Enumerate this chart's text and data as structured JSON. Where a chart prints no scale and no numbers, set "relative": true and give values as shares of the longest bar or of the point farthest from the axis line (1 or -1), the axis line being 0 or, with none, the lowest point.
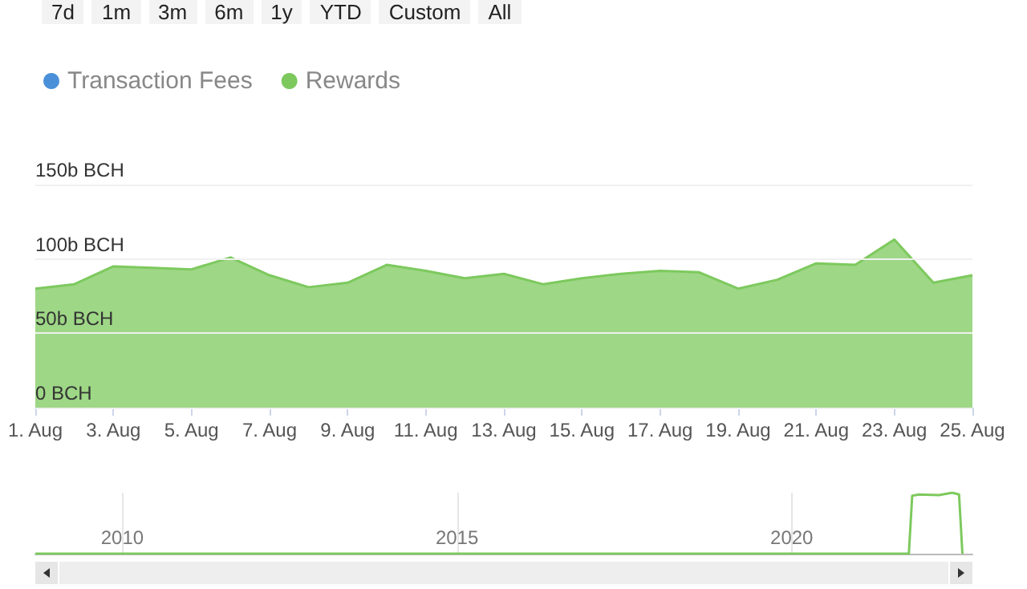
{
  "chart_data": [
    {
      "type": "area",
      "annotations": [
        "7d",
        "1m",
        "3m",
        "6m",
        "1y",
        "YTD",
        "Custom",
        "All"
      ],
      "categories": [
        "1. Aug",
        null,
        "3. Aug",
        null,
        "5. Aug",
        null,
        "7. Aug",
        null,
        "9. Aug",
        null,
        "11. Aug",
        null,
        "13. Aug",
        null,
        "15. Aug",
        null,
        "17. Aug",
        null,
        "19. Aug",
        null,
        "21. Aug",
        null,
        "23. Aug",
        null,
        "25. Aug"
      ],
      "series": [
        {
          "name": "Transaction Fees",
          "color": "#4a90d9",
          "values": [
            null,
            null,
            null,
            null,
            null,
            null,
            null,
            null,
            null,
            null,
            null,
            null,
            null,
            null,
            null,
            null,
            null,
            null,
            null,
            null,
            null,
            null,
            null,
            null,
            null
          ]
        },
        {
          "name": "Rewards",
          "color": "#7dc95e",
          "values": [
            80,
            83,
            95,
            94,
            93,
            101,
            89,
            81,
            84,
            96,
            92,
            87,
            90,
            83,
            87,
            90,
            92,
            91,
            80,
            86,
            97,
            96,
            113,
            84,
            89
          ]
        }
      ],
      "ylim": [
        0,
        150
      ],
      "yticks": [
        {
          "value": 0,
          "label": "0 BCH"
        },
        {
          "value": 50,
          "label": "50b BCH"
        },
        {
          "value": 100,
          "label": "100b BCH"
        },
        {
          "value": 150,
          "label": "150b BCH"
        }
      ],
      "grid": "y",
      "legend": "top left"
    },
    {
      "type": "line",
      "relative": true,
      "x": [
        2008.7,
        2021.75,
        2021.8,
        2021.9,
        2022.2,
        2022.4,
        2022.5,
        2022.55
      ],
      "series": [
        {
          "color": "#7dc95e",
          "values": [
            0,
            0,
            0.95,
            0.97,
            0.96,
            1,
            0.97,
            0
          ]
        }
      ],
      "xlim": [
        2008.7,
        2022.7
      ],
      "xticks": [
        2010,
        2015,
        2020
      ],
      "grid": "x"
    }
  ]
}
